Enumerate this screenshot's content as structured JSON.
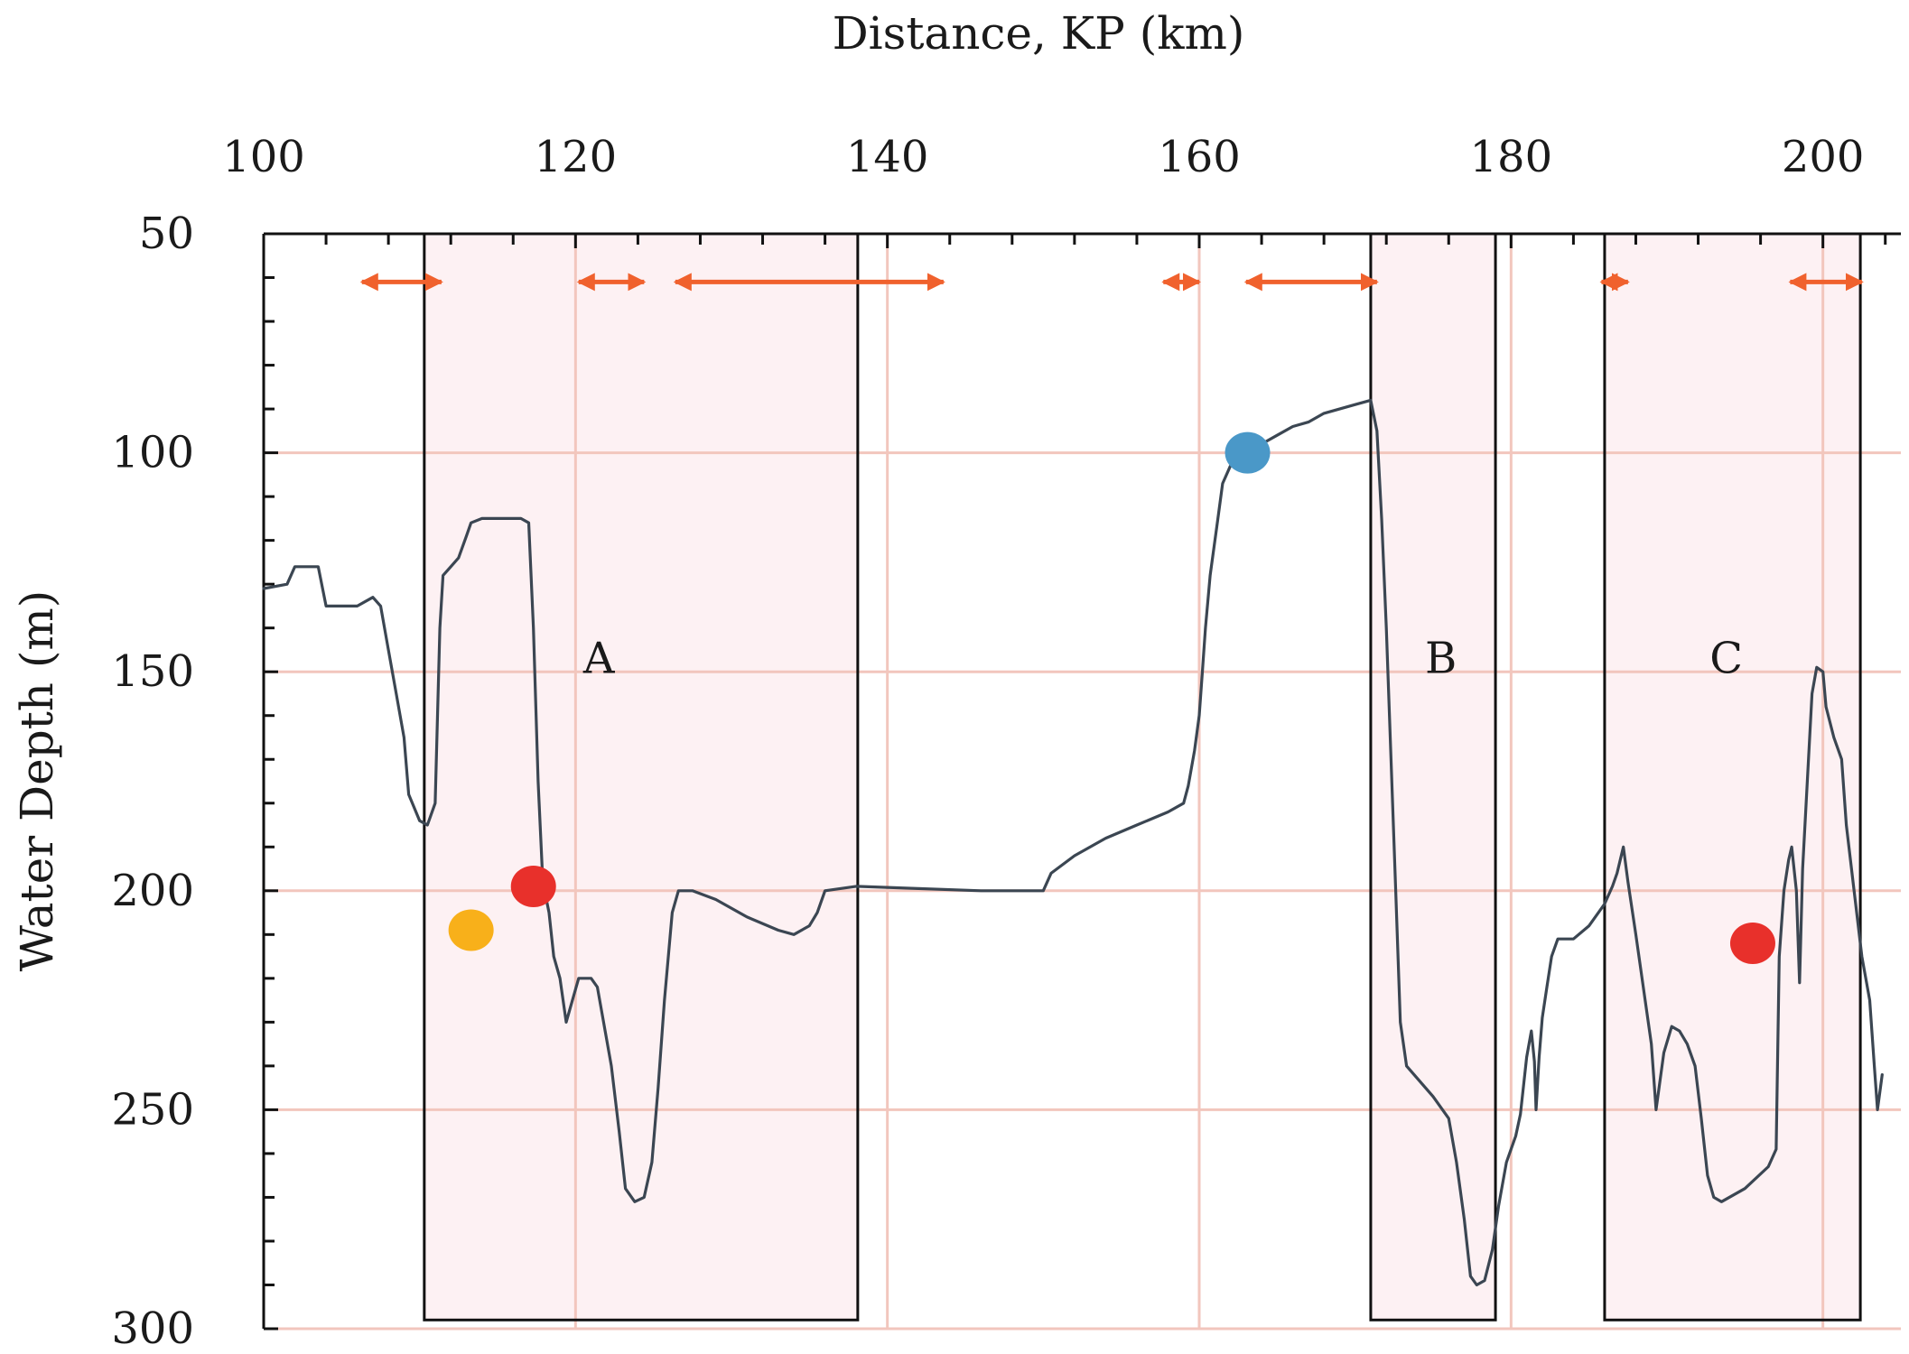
{
  "chart_data": {
    "type": "line",
    "xlabel": "Distance, KP (km)",
    "ylabel": "Water Depth (m)",
    "xlim": [
      100,
      205
    ],
    "ylim": [
      50,
      300
    ],
    "y_inverted": true,
    "x_axis_position": "top",
    "xticks": [
      "100",
      "120",
      "140",
      "160",
      "180",
      "200"
    ],
    "yticks": [
      "50",
      "100",
      "150",
      "200",
      "250",
      "300"
    ],
    "grid": true,
    "colors": {
      "profile": "#3b4652",
      "grid": "#f2c6bd",
      "region_fill": "#fdf1f3",
      "arrow": "#f0612d"
    },
    "series": [
      {
        "points": [
          [
            100,
            131
          ],
          [
            101.5,
            130
          ],
          [
            102,
            126
          ],
          [
            103.5,
            126
          ],
          [
            104,
            135
          ],
          [
            106,
            135
          ],
          [
            107,
            133
          ],
          [
            107.5,
            135
          ],
          [
            108,
            145
          ],
          [
            108.5,
            155
          ],
          [
            109,
            165
          ],
          [
            109.3,
            178
          ],
          [
            110,
            184
          ],
          [
            110.5,
            185
          ],
          [
            111,
            180
          ],
          [
            111.3,
            140
          ],
          [
            111.5,
            128
          ],
          [
            112,
            126
          ],
          [
            112.5,
            124
          ],
          [
            113,
            119
          ],
          [
            113.3,
            116
          ],
          [
            114,
            115
          ],
          [
            116.5,
            115
          ],
          [
            117,
            116
          ],
          [
            117.3,
            140
          ],
          [
            117.6,
            175
          ],
          [
            117.9,
            198
          ],
          [
            118.3,
            205
          ],
          [
            118.6,
            215
          ],
          [
            119,
            220
          ],
          [
            119.4,
            230
          ],
          [
            119.8,
            225
          ],
          [
            120.2,
            220
          ],
          [
            121,
            220
          ],
          [
            121.4,
            222
          ],
          [
            121.8,
            230
          ],
          [
            122.3,
            240
          ],
          [
            122.8,
            255
          ],
          [
            123.2,
            268
          ],
          [
            123.8,
            271
          ],
          [
            124.4,
            270
          ],
          [
            124.9,
            262
          ],
          [
            125.3,
            245
          ],
          [
            125.7,
            225
          ],
          [
            126.2,
            205
          ],
          [
            126.6,
            200
          ],
          [
            127.5,
            200
          ],
          [
            129,
            202
          ],
          [
            131,
            206
          ],
          [
            133,
            209
          ],
          [
            134,
            210
          ],
          [
            135,
            208
          ],
          [
            135.5,
            205
          ],
          [
            136,
            200
          ],
          [
            138,
            199
          ],
          [
            142,
            199.5
          ],
          [
            146,
            200
          ],
          [
            150,
            200
          ],
          [
            150.5,
            196
          ],
          [
            152,
            192
          ],
          [
            154,
            188
          ],
          [
            156,
            185
          ],
          [
            158,
            182
          ],
          [
            159,
            180
          ],
          [
            159.3,
            176
          ],
          [
            159.7,
            168
          ],
          [
            160,
            160
          ],
          [
            160.2,
            150
          ],
          [
            160.4,
            140
          ],
          [
            160.7,
            128
          ],
          [
            161.2,
            115
          ],
          [
            161.5,
            107
          ],
          [
            162,
            103
          ],
          [
            163,
            100
          ],
          [
            164,
            98
          ],
          [
            165,
            96
          ],
          [
            166,
            94
          ],
          [
            167,
            93
          ],
          [
            168,
            91
          ],
          [
            170,
            89
          ],
          [
            171,
            88
          ],
          [
            171.4,
            95
          ],
          [
            171.7,
            115
          ],
          [
            172,
            140
          ],
          [
            172.3,
            170
          ],
          [
            172.6,
            200
          ],
          [
            172.9,
            230
          ],
          [
            173.3,
            240
          ],
          [
            175,
            247
          ],
          [
            176,
            252
          ],
          [
            176.5,
            262
          ],
          [
            177,
            275
          ],
          [
            177.4,
            288
          ],
          [
            177.8,
            290
          ],
          [
            178.3,
            289
          ],
          [
            178.8,
            282
          ],
          [
            179.2,
            272
          ],
          [
            179.7,
            262
          ],
          [
            180.3,
            256
          ],
          [
            180.6,
            251
          ],
          [
            181,
            238
          ],
          [
            181.3,
            232
          ],
          [
            181.5,
            239
          ],
          [
            181.6,
            250
          ],
          [
            181.8,
            238
          ],
          [
            182,
            229
          ],
          [
            182.3,
            222
          ],
          [
            182.6,
            215
          ],
          [
            183,
            211
          ],
          [
            184,
            211
          ],
          [
            185,
            208
          ],
          [
            186,
            203
          ],
          [
            186.5,
            199
          ],
          [
            186.8,
            196
          ],
          [
            187.2,
            190
          ],
          [
            187.5,
            198
          ],
          [
            188,
            210
          ],
          [
            189,
            235
          ],
          [
            189.3,
            250
          ],
          [
            189.8,
            237
          ],
          [
            190.3,
            231
          ],
          [
            190.8,
            232
          ],
          [
            191.3,
            235
          ],
          [
            191.8,
            240
          ],
          [
            192.2,
            252
          ],
          [
            192.6,
            265
          ],
          [
            193,
            270
          ],
          [
            193.5,
            271
          ],
          [
            195,
            268
          ],
          [
            196.5,
            263
          ],
          [
            197,
            259
          ],
          [
            197.2,
            215
          ],
          [
            197.5,
            200
          ],
          [
            197.8,
            193
          ],
          [
            198,
            190
          ],
          [
            198.3,
            200
          ],
          [
            198.5,
            221
          ],
          [
            198.7,
            195
          ],
          [
            199,
            175
          ],
          [
            199.3,
            155
          ],
          [
            199.6,
            149
          ],
          [
            200,
            150
          ],
          [
            200.2,
            158
          ],
          [
            200.7,
            165
          ],
          [
            201.2,
            170
          ],
          [
            201.5,
            185
          ],
          [
            202,
            200
          ],
          [
            202.5,
            215
          ],
          [
            203,
            225
          ],
          [
            203.3,
            240
          ],
          [
            203.5,
            250
          ],
          [
            203.8,
            242
          ]
        ]
      }
    ],
    "regions": [
      {
        "label": "A",
        "x": [
          110.3,
          138.1
        ],
        "y": [
          50,
          298
        ],
        "label_x": 121.5,
        "label_y": 147
      },
      {
        "label": "B",
        "x": [
          171,
          179
        ],
        "y": [
          50,
          298
        ],
        "label_x": 175.5,
        "label_y": 147
      },
      {
        "label": "C",
        "x": [
          186,
          202.4
        ],
        "y": [
          50,
          298
        ],
        "label_x": 193.8,
        "label_y": 147
      }
    ],
    "span_arrows": [
      {
        "x1": 106.3,
        "x2": 111.4,
        "y": 61
      },
      {
        "x1": 120.2,
        "x2": 124.4,
        "y": 61
      },
      {
        "x1": 126.4,
        "x2": 143.6,
        "y": 61
      },
      {
        "x1": 157.7,
        "x2": 160,
        "y": 61
      },
      {
        "x1": 163,
        "x2": 171.4,
        "y": 61
      },
      {
        "x1": 185.8,
        "x2": 187.5,
        "y": 61
      },
      {
        "x1": 197.9,
        "x2": 202.5,
        "y": 61
      }
    ],
    "markers": [
      {
        "x": 113.3,
        "y": 209,
        "color": "#f8b01a"
      },
      {
        "x": 117.3,
        "y": 199,
        "color": "#e8302b"
      },
      {
        "x": 163.1,
        "y": 100,
        "color": "#4a98c8"
      },
      {
        "x": 195.5,
        "y": 212,
        "color": "#e8302b"
      }
    ]
  }
}
